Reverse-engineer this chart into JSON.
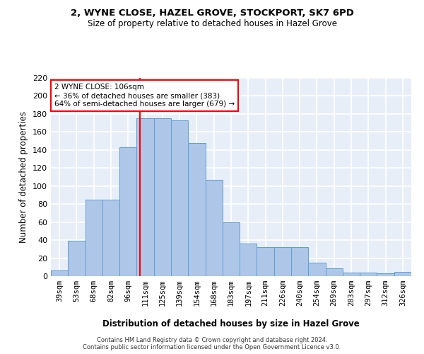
{
  "title1": "2, WYNE CLOSE, HAZEL GROVE, STOCKPORT, SK7 6PD",
  "title2": "Size of property relative to detached houses in Hazel Grove",
  "xlabel": "Distribution of detached houses by size in Hazel Grove",
  "ylabel": "Number of detached properties",
  "footnote1": "Contains HM Land Registry data © Crown copyright and database right 2024.",
  "footnote2": "Contains public sector information licensed under the Open Government Licence v3.0.",
  "categories": [
    "39sqm",
    "53sqm",
    "68sqm",
    "82sqm",
    "96sqm",
    "111sqm",
    "125sqm",
    "139sqm",
    "154sqm",
    "168sqm",
    "183sqm",
    "197sqm",
    "211sqm",
    "226sqm",
    "240sqm",
    "254sqm",
    "269sqm",
    "283sqm",
    "297sqm",
    "312sqm",
    "326sqm"
  ],
  "values": [
    6,
    39,
    85,
    85,
    143,
    175,
    175,
    173,
    148,
    107,
    60,
    36,
    32,
    32,
    32,
    15,
    9,
    4,
    4,
    3,
    5
  ],
  "bar_color": "#aec6e8",
  "bar_edge_color": "#5a9fd4",
  "background_color": "#e8eef8",
  "grid_color": "#ffffff",
  "annotation_text": "2 WYNE CLOSE: 106sqm\n← 36% of detached houses are smaller (383)\n64% of semi-detached houses are larger (679) →",
  "vline_color": "red",
  "ylim": [
    0,
    220
  ],
  "yticks": [
    0,
    20,
    40,
    60,
    80,
    100,
    120,
    140,
    160,
    180,
    200,
    220
  ]
}
